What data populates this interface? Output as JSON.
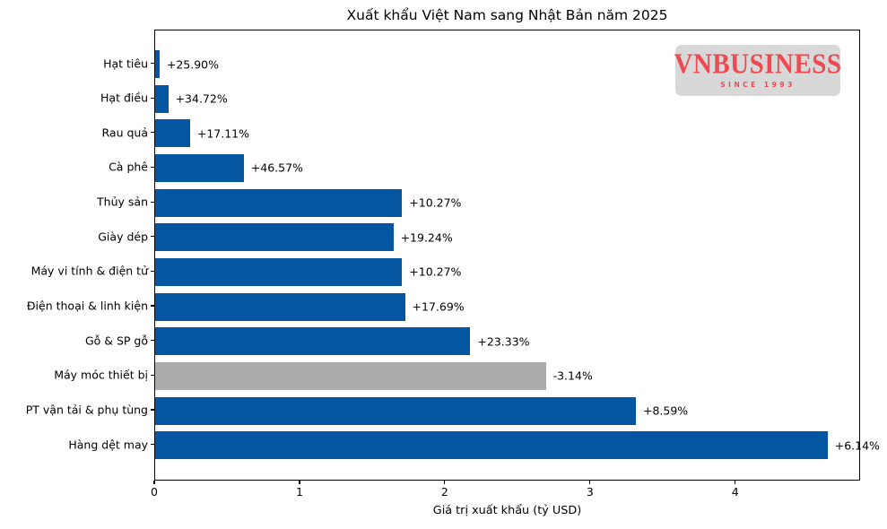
{
  "chart_data": {
    "type": "bar",
    "orientation": "horizontal",
    "title": "Xuất khẩu Việt Nam sang Nhật Bản năm 2025",
    "xlabel": "Giá trị xuất khẩu (tỷ USD)",
    "categories": [
      "Hạt tiêu",
      "Hạt điều",
      "Rau quả",
      "Cà phê",
      "Thủy sản",
      "Giày dép",
      "Máy vi tính & điện tử",
      "Điện thoại & linh kiện",
      "Gỗ & SP gỗ",
      "Máy móc thiết bị",
      "PT vận tải & phụ tùng",
      "Hàng dệt may"
    ],
    "values": [
      0.03,
      0.09,
      0.24,
      0.61,
      1.7,
      1.64,
      1.7,
      1.72,
      2.17,
      2.69,
      3.31,
      4.63
    ],
    "growth_labels": [
      "+25.90%",
      "+34.72%",
      "+17.11%",
      "+46.57%",
      "+10.27%",
      "+19.24%",
      "+10.27%",
      "+17.69%",
      "+23.33%",
      "-3.14%",
      "+8.59%",
      "+6.14%"
    ],
    "xticks": [
      0,
      1,
      2,
      3,
      4
    ],
    "xlim": [
      0,
      4.86
    ],
    "grid": false,
    "legend": null,
    "bar_color_positive": "#0456a3",
    "bar_color_negative": "#ababab"
  },
  "logo": {
    "text": "VNBUSINESS",
    "subtext": "SINCE 1993",
    "bg_color": "#d8d8d8",
    "text_color": "#ee4a52"
  }
}
